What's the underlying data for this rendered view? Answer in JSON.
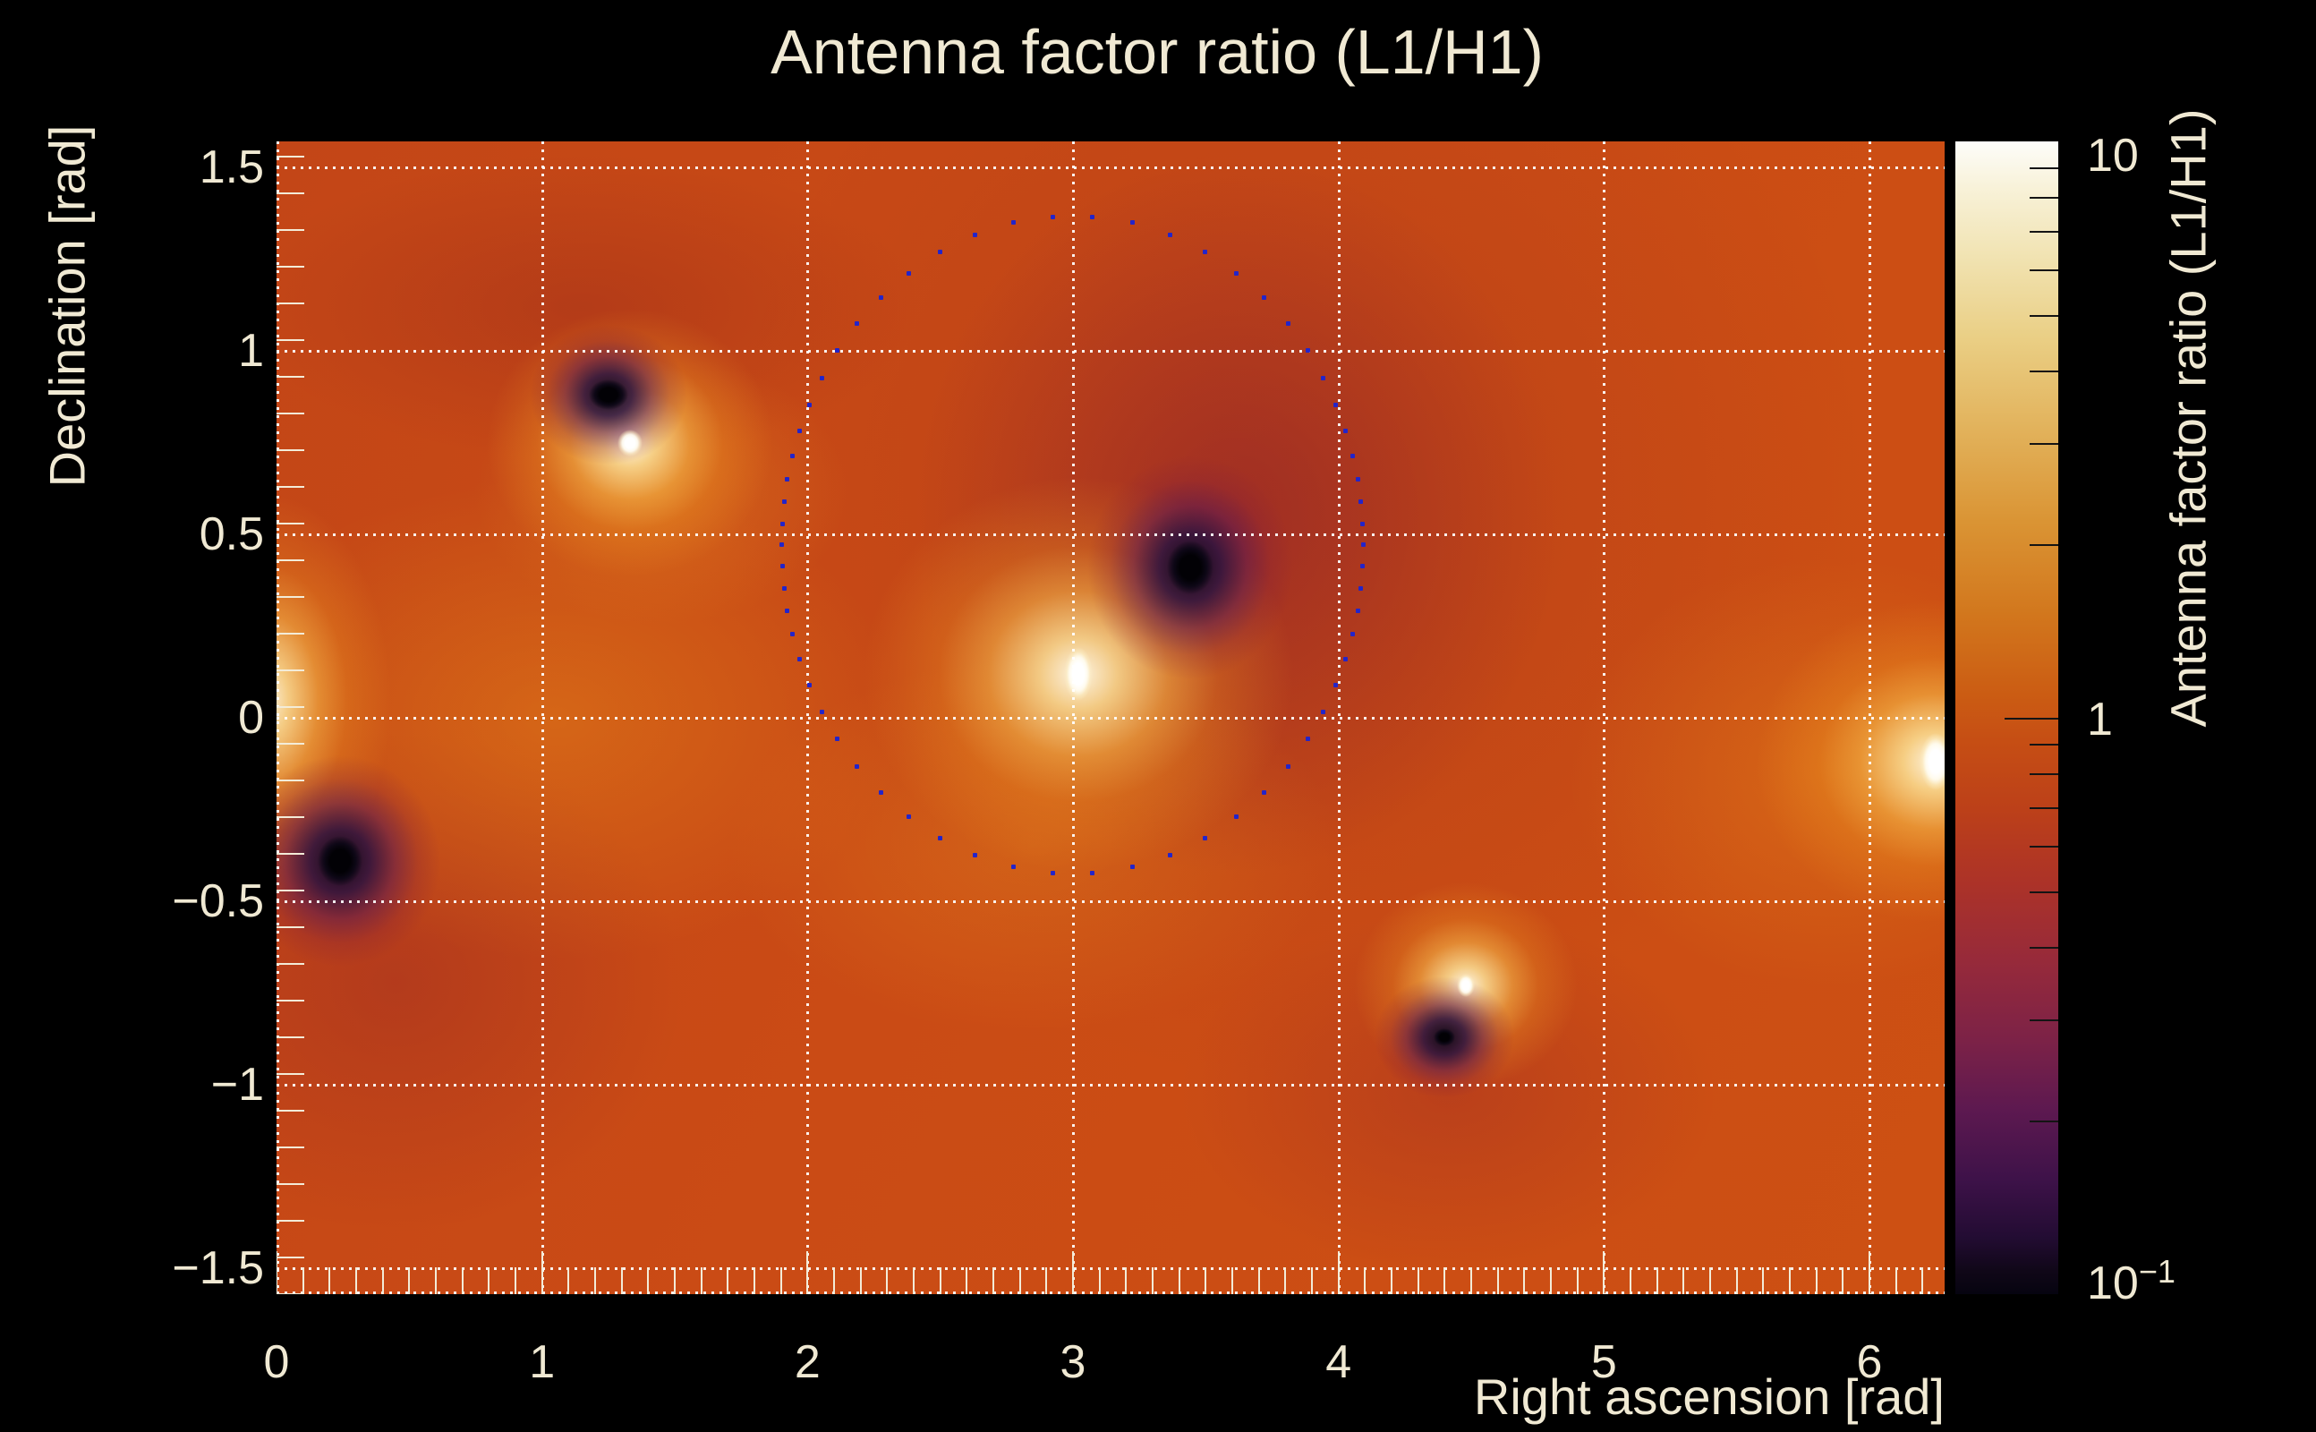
{
  "chart_data": {
    "type": "heatmap",
    "title": "Antenna factor ratio (L1/H1)",
    "xlabel": "Right ascension [rad]",
    "ylabel": "Declination [rad]",
    "colorbar_title": "Antenna factor ratio (L1/H1)",
    "axes": {
      "x_range": [
        0,
        6.2832
      ],
      "y_range": [
        -1.5708,
        1.5708
      ],
      "x_ticks": [
        0,
        1,
        2,
        3,
        4,
        5,
        6
      ],
      "x_tick_labels": [
        "0",
        "1",
        "2",
        "3",
        "4",
        "5",
        "6"
      ],
      "y_ticks": [
        1.5,
        1,
        0.5,
        0,
        -0.5,
        -1,
        -1.5
      ],
      "y_tick_labels": [
        "1.5",
        "1",
        "0.5",
        "0",
        "−0.5",
        "−1",
        "−1.5"
      ],
      "minor_tick_step": 0.1,
      "grid": true,
      "grid_color": "#ffffff",
      "text_color": "#f0e9d3"
    },
    "colorbar": {
      "scale": "log",
      "range_min": 0.1,
      "range_max": 10,
      "tick_labels": [
        {
          "text": "10",
          "sup": "",
          "value": 10
        },
        {
          "text": "1",
          "sup": "",
          "value": 1
        },
        {
          "text": "10",
          "sup": "−1",
          "value": 0.1
        }
      ],
      "minor_tick_values": [
        9,
        8,
        7,
        6,
        5,
        4,
        3,
        2,
        0.9,
        0.8,
        0.7,
        0.6,
        0.5,
        0.4,
        0.3,
        0.2
      ],
      "major_tick_values": [
        1
      ],
      "gradient_stops": [
        [
          0,
          "#fdfdfa"
        ],
        [
          4,
          "#f8f2d9"
        ],
        [
          10,
          "#f1e3b2"
        ],
        [
          17,
          "#eacf85"
        ],
        [
          25,
          "#e2b25b"
        ],
        [
          33,
          "#da9434"
        ],
        [
          41,
          "#d2771d"
        ],
        [
          48,
          "#cb5c13"
        ],
        [
          52,
          "#c64e14"
        ],
        [
          58,
          "#bc4019"
        ],
        [
          64,
          "#ad3327"
        ],
        [
          71,
          "#972a3a"
        ],
        [
          78,
          "#7c2247"
        ],
        [
          84,
          "#5d1950"
        ],
        [
          90,
          "#3e1249"
        ],
        [
          95,
          "#230c33"
        ],
        [
          98,
          "#100718"
        ],
        [
          100,
          "#060410"
        ]
      ]
    },
    "background": {
      "base_gradient": [
        "#c34617",
        "#ca4b15",
        "#cd5013"
      ]
    },
    "features": {
      "bright_spots": [
        {
          "name": "central maximum",
          "ra": 3.02,
          "dec": 0.12,
          "core": [
            16,
            30
          ],
          "glow": [
            240,
            220
          ]
        },
        {
          "name": "upper-left maximum",
          "ra": 1.33,
          "dec": 0.75,
          "core": [
            14,
            15
          ],
          "glow": [
            160,
            150
          ]
        },
        {
          "name": "lower-right maximum",
          "ra": 4.48,
          "dec": -0.73,
          "core": [
            10,
            13
          ],
          "glow": [
            125,
            115
          ]
        },
        {
          "name": "right-edge maximum",
          "ra": 6.25,
          "dec": -0.12,
          "core": [
            18,
            32
          ],
          "glow": [
            200,
            180
          ]
        },
        {
          "name": "left-edge wrap glow",
          "ra": -0.04,
          "dec": 0.05,
          "core": [
            0,
            0
          ],
          "glow": [
            140,
            230
          ]
        }
      ],
      "dark_spots": [
        {
          "name": "central null",
          "ra": 3.44,
          "dec": 0.41,
          "core": [
            26,
            30
          ],
          "halo": [
            115,
            125
          ]
        },
        {
          "name": "upper-left null",
          "ra": 1.25,
          "dec": 0.88,
          "core": [
            22,
            17
          ],
          "halo": [
            88,
            78
          ]
        },
        {
          "name": "left null",
          "ra": 0.24,
          "dec": -0.39,
          "core": [
            25,
            28
          ],
          "halo": [
            112,
            118
          ]
        },
        {
          "name": "lower-right null",
          "ra": 4.4,
          "dec": -0.87,
          "core": [
            12,
            10
          ],
          "halo": [
            78,
            68
          ]
        }
      ],
      "washes": [
        {
          "name": "warm left-center",
          "ra": 1.05,
          "dec": 0.0,
          "ext": [
            390,
            270
          ],
          "color": "rgba(233,142,24,0.42)"
        },
        {
          "name": "warm below-center",
          "ra": 2.85,
          "dec": -0.35,
          "ext": [
            340,
            210
          ],
          "color": "rgba(236,152,30,0.30)"
        },
        {
          "name": "warm right",
          "ra": 5.85,
          "dec": -0.15,
          "ext": [
            290,
            240
          ],
          "color": "rgba(236,152,30,0.32)"
        },
        {
          "name": "warm upper-left",
          "ra": 1.45,
          "dec": 0.62,
          "ext": [
            210,
            150
          ],
          "color": "rgba(240,162,40,0.32)"
        },
        {
          "name": "dark upper-left",
          "ra": 1.15,
          "dec": 1.12,
          "ext": [
            380,
            170
          ],
          "color": "rgba(155,42,26,0.42)"
        },
        {
          "name": "dark central inner",
          "ra": 3.62,
          "dec": 0.55,
          "ext": [
            360,
            400
          ],
          "color": "rgba(130,25,48,0.50)"
        },
        {
          "name": "dark central outer",
          "ra": 3.85,
          "dec": 0.62,
          "ext": [
            640,
            660
          ],
          "color": "rgba(160,48,30,0.34)"
        },
        {
          "name": "dark left-low",
          "ra": 0.45,
          "dec": -0.72,
          "ext": [
            320,
            280
          ],
          "color": "rgba(148,36,38,0.38)"
        },
        {
          "name": "dark lower-right",
          "ra": 4.42,
          "dec": -1.02,
          "ext": [
            300,
            200
          ],
          "color": "rgba(148,34,42,0.32)"
        }
      ]
    },
    "contour": {
      "description": "dotted sky-localization circle",
      "center_ra": 2.99,
      "center_dec": 0.477,
      "rx_rad": 1.096,
      "ry_rad": 0.897,
      "n_dots": 62,
      "side_compression": 0.18,
      "dot_color": "#2324c9"
    }
  }
}
